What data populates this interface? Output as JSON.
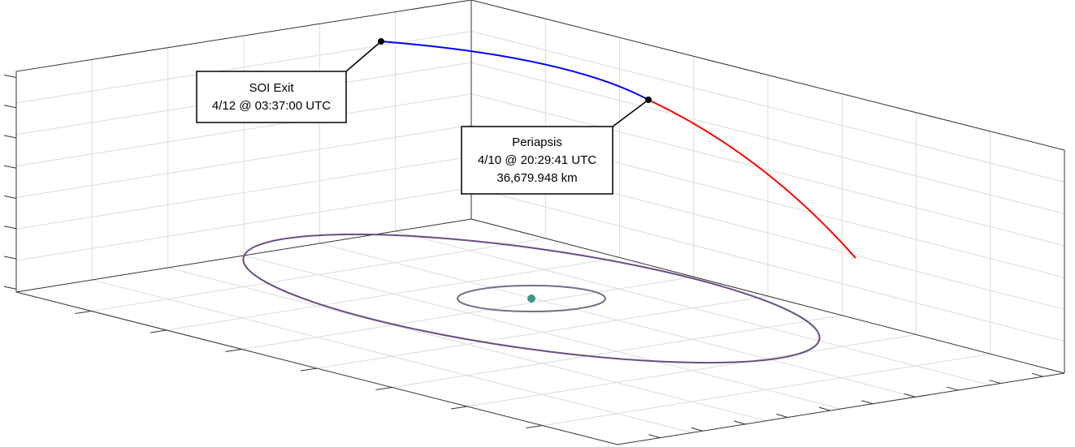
{
  "annotations": [
    {
      "lines": [
        "SOI Exit",
        "4/12 @ 03:37:00 UTC"
      ]
    },
    {
      "lines": [
        "Periapsis",
        "4/10 @ 20:29:41 UTC",
        "36,679.948 km"
      ]
    }
  ]
}
